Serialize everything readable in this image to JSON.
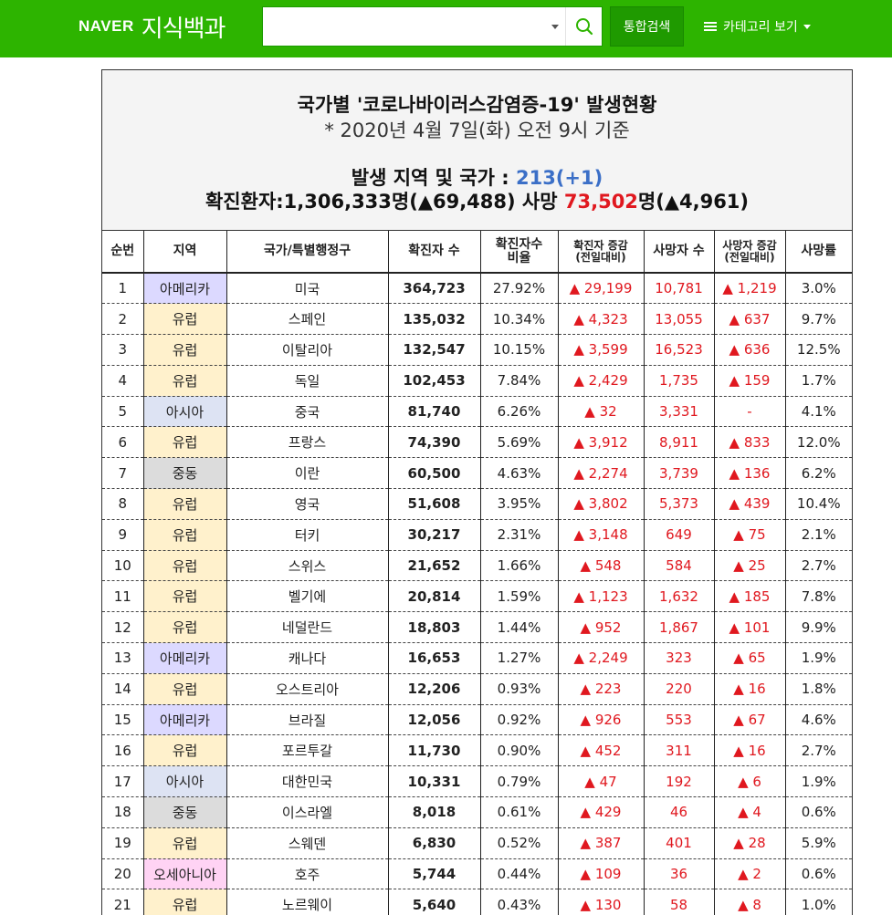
{
  "header": {
    "logo_naver": "NAVER",
    "logo_service": "지식백과",
    "search": {
      "value": "",
      "placeholder": ""
    },
    "integrated_search_label": "통합검색",
    "category_label": "카테고리 보기"
  },
  "content": {
    "title": "국가별 '코로나바이러스감염증-19' 발생현황",
    "subtitle": "* 2020년 4월 7일(화) 오전 9시 기준",
    "region_label": "발생 지역 및 국가 : ",
    "region_count": "213(+1)",
    "confirmed_label": "확진환자:1,306,333명(▲69,488)",
    "death_label": "사망 ",
    "death_value": "73,502",
    "death_suffix": "명(▲4,961)",
    "colors": {
      "brand_green": "#2db400",
      "increase_red": "#e0181f",
      "count_blue": "#3b6fc7"
    },
    "columns": [
      "순번",
      "지역",
      "국가/특별행정구",
      "확진자 수",
      "확진자수 비율",
      "확진자 증감 (전일대비)",
      "사망자 수",
      "사망자 증감 (전일대비)",
      "사망률"
    ],
    "rows": [
      {
        "no": "1",
        "region": "아메리카",
        "rcls": "r-am",
        "country": "미국",
        "confirmed": "364,723",
        "ratio": "27.92%",
        "inc": "▲ 29,199",
        "deaths": "10,781",
        "dinc": "▲ 1,219",
        "rate": "3.0%"
      },
      {
        "no": "2",
        "region": "유럽",
        "rcls": "r-eu",
        "country": "스페인",
        "confirmed": "135,032",
        "ratio": "10.34%",
        "inc": "▲ 4,323",
        "deaths": "13,055",
        "dinc": "▲ 637",
        "rate": "9.7%"
      },
      {
        "no": "3",
        "region": "유럽",
        "rcls": "r-eu",
        "country": "이탈리아",
        "confirmed": "132,547",
        "ratio": "10.15%",
        "inc": "▲ 3,599",
        "deaths": "16,523",
        "dinc": "▲ 636",
        "rate": "12.5%"
      },
      {
        "no": "4",
        "region": "유럽",
        "rcls": "r-eu",
        "country": "독일",
        "confirmed": "102,453",
        "ratio": "7.84%",
        "inc": "▲ 2,429",
        "deaths": "1,735",
        "dinc": "▲ 159",
        "rate": "1.7%"
      },
      {
        "no": "5",
        "region": "아시아",
        "rcls": "r-as",
        "country": "중국",
        "confirmed": "81,740",
        "ratio": "6.26%",
        "inc": "▲ 32",
        "deaths": "3,331",
        "dinc": "-",
        "rate": "4.1%"
      },
      {
        "no": "6",
        "region": "유럽",
        "rcls": "r-eu",
        "country": "프랑스",
        "confirmed": "74,390",
        "ratio": "5.69%",
        "inc": "▲ 3,912",
        "deaths": "8,911",
        "dinc": "▲ 833",
        "rate": "12.0%"
      },
      {
        "no": "7",
        "region": "중동",
        "rcls": "r-me",
        "country": "이란",
        "confirmed": "60,500",
        "ratio": "4.63%",
        "inc": "▲ 2,274",
        "deaths": "3,739",
        "dinc": "▲ 136",
        "rate": "6.2%"
      },
      {
        "no": "8",
        "region": "유럽",
        "rcls": "r-eu",
        "country": "영국",
        "confirmed": "51,608",
        "ratio": "3.95%",
        "inc": "▲ 3,802",
        "deaths": "5,373",
        "dinc": "▲ 439",
        "rate": "10.4%"
      },
      {
        "no": "9",
        "region": "유럽",
        "rcls": "r-eu",
        "country": "터키",
        "confirmed": "30,217",
        "ratio": "2.31%",
        "inc": "▲ 3,148",
        "deaths": "649",
        "dinc": "▲ 75",
        "rate": "2.1%"
      },
      {
        "no": "10",
        "region": "유럽",
        "rcls": "r-eu",
        "country": "스위스",
        "confirmed": "21,652",
        "ratio": "1.66%",
        "inc": "▲ 548",
        "deaths": "584",
        "dinc": "▲ 25",
        "rate": "2.7%"
      },
      {
        "no": "11",
        "region": "유럽",
        "rcls": "r-eu",
        "country": "벨기에",
        "confirmed": "20,814",
        "ratio": "1.59%",
        "inc": "▲ 1,123",
        "deaths": "1,632",
        "dinc": "▲ 185",
        "rate": "7.8%"
      },
      {
        "no": "12",
        "region": "유럽",
        "rcls": "r-eu",
        "country": "네덜란드",
        "confirmed": "18,803",
        "ratio": "1.44%",
        "inc": "▲ 952",
        "deaths": "1,867",
        "dinc": "▲ 101",
        "rate": "9.9%"
      },
      {
        "no": "13",
        "region": "아메리카",
        "rcls": "r-am",
        "country": "캐나다",
        "confirmed": "16,653",
        "ratio": "1.27%",
        "inc": "▲ 2,249",
        "deaths": "323",
        "dinc": "▲ 65",
        "rate": "1.9%"
      },
      {
        "no": "14",
        "region": "유럽",
        "rcls": "r-eu",
        "country": "오스트리아",
        "confirmed": "12,206",
        "ratio": "0.93%",
        "inc": "▲ 223",
        "deaths": "220",
        "dinc": "▲ 16",
        "rate": "1.8%"
      },
      {
        "no": "15",
        "region": "아메리카",
        "rcls": "r-am",
        "country": "브라질",
        "confirmed": "12,056",
        "ratio": "0.92%",
        "inc": "▲ 926",
        "deaths": "553",
        "dinc": "▲ 67",
        "rate": "4.6%"
      },
      {
        "no": "16",
        "region": "유럽",
        "rcls": "r-eu",
        "country": "포르투갈",
        "confirmed": "11,730",
        "ratio": "0.90%",
        "inc": "▲ 452",
        "deaths": "311",
        "dinc": "▲ 16",
        "rate": "2.7%"
      },
      {
        "no": "17",
        "region": "아시아",
        "rcls": "r-as",
        "country": "대한민국",
        "confirmed": "10,331",
        "ratio": "0.79%",
        "inc": "▲ 47",
        "deaths": "192",
        "dinc": "▲ 6",
        "rate": "1.9%"
      },
      {
        "no": "18",
        "region": "중동",
        "rcls": "r-me",
        "country": "이스라엘",
        "confirmed": "8,018",
        "ratio": "0.61%",
        "inc": "▲ 429",
        "deaths": "46",
        "dinc": "▲ 4",
        "rate": "0.6%"
      },
      {
        "no": "19",
        "region": "유럽",
        "rcls": "r-eu",
        "country": "스웨덴",
        "confirmed": "6,830",
        "ratio": "0.52%",
        "inc": "▲ 387",
        "deaths": "401",
        "dinc": "▲ 28",
        "rate": "5.9%"
      },
      {
        "no": "20",
        "region": "오세아니아",
        "rcls": "r-oc",
        "country": "호주",
        "confirmed": "5,744",
        "ratio": "0.44%",
        "inc": "▲ 109",
        "deaths": "36",
        "dinc": "▲ 2",
        "rate": "0.6%"
      },
      {
        "no": "21",
        "region": "유럽",
        "rcls": "r-eu",
        "country": "노르웨이",
        "confirmed": "5,640",
        "ratio": "0.43%",
        "inc": "▲ 130",
        "deaths": "58",
        "dinc": "▲ 8",
        "rate": "1.0%"
      }
    ]
  }
}
